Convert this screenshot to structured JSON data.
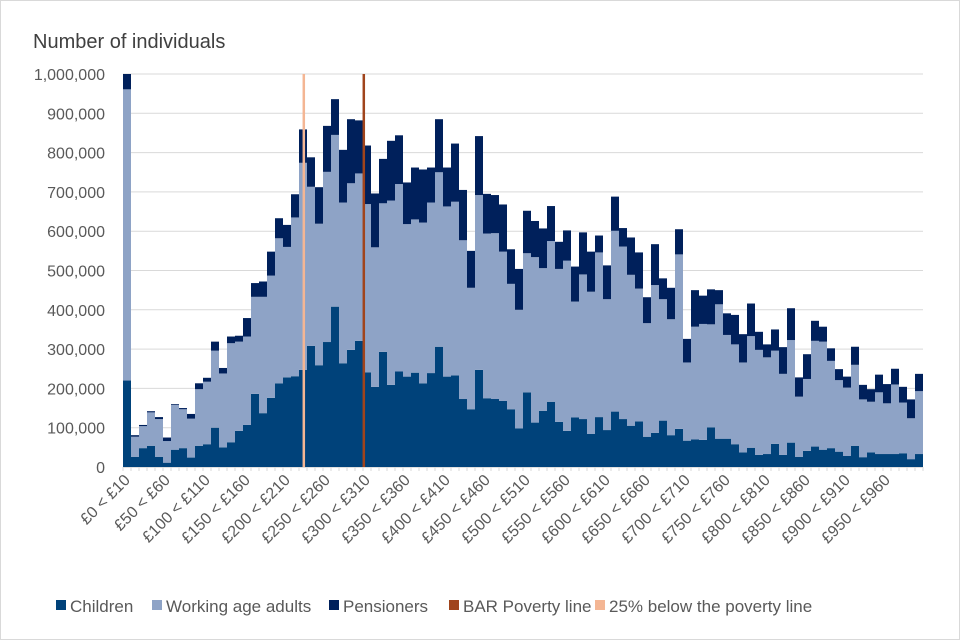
{
  "chart_data": {
    "type": "bar",
    "stacked": true,
    "title": "",
    "ylabel": "Number of individuals",
    "xlabel": "",
    "ylim": [
      0,
      1000000
    ],
    "y_ticks": [
      "0",
      "100,000",
      "200,000",
      "300,000",
      "400,000",
      "500,000",
      "600,000",
      "700,000",
      "800,000",
      "900,000",
      "1,000,000"
    ],
    "y_tick_values": [
      0,
      100000,
      200000,
      300000,
      400000,
      500000,
      600000,
      700000,
      800000,
      900000,
      1000000
    ],
    "grid": true,
    "bin_start": 0,
    "bin_width": 10,
    "x_tick_labels": [
      "£0 < £10",
      "£50 < £60",
      "£100 < £110",
      "£150 < £160",
      "£200 < £210",
      "£250 < £260",
      "£300 < £310",
      "£350 < £360",
      "£400 < £410",
      "£450 < £460",
      "£500 < £510",
      "£550 < £560",
      "£600 < £610",
      "£650 < £660",
      "£700 < £710",
      "£750 < £760",
      "£800 < £810",
      "£850 < £860",
      "£900 < £910",
      "£950 < £960"
    ],
    "value_scale": 1000,
    "series": [
      {
        "name": "Children",
        "color": "#00427a",
        "values": [
          220,
          26,
          48,
          54,
          26,
          11,
          44,
          48,
          24,
          54,
          58,
          100,
          50,
          63,
          92,
          107,
          186,
          137,
          176,
          213,
          228,
          231,
          247,
          308,
          259,
          318,
          408,
          264,
          298,
          321,
          241,
          204,
          293,
          209,
          243,
          230,
          240,
          213,
          239,
          306,
          230,
          233,
          173,
          147,
          247,
          175,
          173,
          168,
          147,
          98,
          190,
          113,
          143,
          166,
          115,
          92,
          126,
          122,
          84,
          127,
          94,
          141,
          122,
          105,
          116,
          77,
          87,
          118,
          81,
          97,
          67,
          70,
          69,
          101,
          72,
          72,
          58,
          37,
          49,
          31,
          33,
          59,
          31,
          62,
          26,
          41,
          52,
          44,
          48,
          39,
          28,
          54,
          25,
          37,
          33,
          33,
          33,
          35,
          20,
          33
        ]
      },
      {
        "name": "Working age adults",
        "color": "#8ea3c6",
        "values": [
          741,
          51,
          56,
          85,
          96,
          55,
          114,
          99,
          99,
          144,
          159,
          196,
          188,
          252,
          227,
          225,
          247,
          296,
          311,
          369,
          332,
          404,
          527,
          405,
          360,
          433,
          437,
          409,
          424,
          426,
          428,
          355,
          378,
          469,
          477,
          388,
          390,
          409,
          434,
          444,
          433,
          442,
          404,
          309,
          445,
          419,
          422,
          380,
          319,
          302,
          354,
          421,
          363,
          409,
          389,
          433,
          295,
          368,
          362,
          419,
          333,
          460,
          439,
          384,
          338,
          289,
          376,
          309,
          295,
          444,
          199,
          287,
          295,
          262,
          342,
          264,
          254,
          229,
          284,
          267,
          246,
          237,
          206,
          261,
          153,
          183,
          269,
          275,
          222,
          182,
          174,
          206,
          147,
          129,
          157,
          129,
          177,
          129,
          104,
          160
        ]
      },
      {
        "name": "Pensioners",
        "color": "#00205b",
        "values": [
          39,
          4,
          3,
          3,
          5,
          9,
          2,
          3,
          12,
          15,
          10,
          23,
          14,
          17,
          15,
          47,
          35,
          39,
          61,
          51,
          56,
          59,
          85,
          75,
          93,
          117,
          91,
          134,
          163,
          135,
          149,
          137,
          113,
          152,
          124,
          106,
          132,
          135,
          89,
          135,
          99,
          148,
          128,
          94,
          150,
          101,
          97,
          120,
          88,
          104,
          108,
          92,
          101,
          89,
          69,
          77,
          89,
          107,
          102,
          43,
          86,
          87,
          47,
          95,
          92,
          66,
          104,
          53,
          80,
          64,
          60,
          93,
          72,
          89,
          36,
          55,
          75,
          72,
          83,
          46,
          33,
          54,
          68,
          81,
          49,
          63,
          51,
          38,
          32,
          28,
          28,
          46,
          37,
          32,
          45,
          49,
          40,
          40,
          48,
          44
        ]
      }
    ],
    "reference_lines": [
      {
        "name": "BAR Poverty line",
        "color": "#a0441c",
        "x_value": 301
      },
      {
        "name": "25% below the poverty line",
        "color": "#f4b694",
        "x_value": 226
      }
    ],
    "legend": {
      "position": "bottom",
      "entries": [
        {
          "label": "Children",
          "color": "#00427a"
        },
        {
          "label": "Working age adults",
          "color": "#8ea3c6"
        },
        {
          "label": "Pensioners",
          "color": "#00205b"
        },
        {
          "label": "BAR Poverty line",
          "color": "#a0441c"
        },
        {
          "label": "25% below the poverty line",
          "color": "#f4b694"
        }
      ]
    }
  }
}
